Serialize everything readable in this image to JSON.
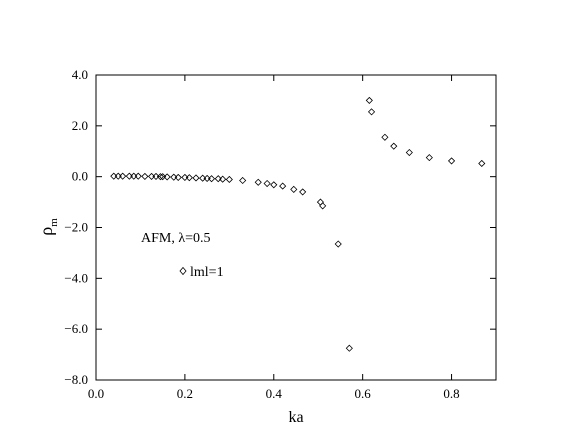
{
  "chart_data": {
    "type": "scatter",
    "xlabel": "ka",
    "ylabel_main": "ρ",
    "ylabel_sub": "m",
    "xlim": [
      0.0,
      0.9
    ],
    "ylim": [
      -8.0,
      4.0
    ],
    "x_ticks": [
      "0.0",
      "0.2",
      "0.4",
      "0.6",
      "0.8"
    ],
    "x_tick_values": [
      0.0,
      0.2,
      0.4,
      0.6,
      0.8
    ],
    "y_ticks": [
      "4.0",
      "2.0",
      "0.0",
      "−2.0",
      "−4.0",
      "−6.0",
      "−8.0"
    ],
    "y_tick_values": [
      4.0,
      2.0,
      0.0,
      -2.0,
      -4.0,
      -6.0,
      -8.0
    ],
    "grid": false,
    "marker": "diamond",
    "annotations": {
      "model_text": "AFM, λ=0.5",
      "legend_text": "lml=1"
    },
    "series": [
      {
        "name": "lml=1",
        "points": [
          [
            0.04,
            0.02
          ],
          [
            0.05,
            0.02
          ],
          [
            0.06,
            0.02
          ],
          [
            0.075,
            0.02
          ],
          [
            0.085,
            0.02
          ],
          [
            0.095,
            0.02
          ],
          [
            0.11,
            0.01
          ],
          [
            0.125,
            0.01
          ],
          [
            0.135,
            0.01
          ],
          [
            0.145,
            0.0
          ],
          [
            0.15,
            0.0
          ],
          [
            0.16,
            -0.01
          ],
          [
            0.175,
            -0.02
          ],
          [
            0.185,
            -0.03
          ],
          [
            0.2,
            -0.03
          ],
          [
            0.21,
            -0.04
          ],
          [
            0.225,
            -0.05
          ],
          [
            0.24,
            -0.06
          ],
          [
            0.25,
            -0.07
          ],
          [
            0.26,
            -0.08
          ],
          [
            0.275,
            -0.08
          ],
          [
            0.285,
            -0.1
          ],
          [
            0.3,
            -0.11
          ],
          [
            0.33,
            -0.15
          ],
          [
            0.365,
            -0.22
          ],
          [
            0.385,
            -0.27
          ],
          [
            0.4,
            -0.32
          ],
          [
            0.42,
            -0.37
          ],
          [
            0.445,
            -0.5
          ],
          [
            0.465,
            -0.6
          ],
          [
            0.505,
            -1.0
          ],
          [
            0.51,
            -1.15
          ],
          [
            0.545,
            -2.65
          ],
          [
            0.57,
            -6.75
          ],
          [
            0.615,
            3.0
          ],
          [
            0.62,
            2.55
          ],
          [
            0.65,
            1.55
          ],
          [
            0.67,
            1.2
          ],
          [
            0.705,
            0.95
          ],
          [
            0.75,
            0.75
          ],
          [
            0.8,
            0.62
          ],
          [
            0.868,
            0.52
          ]
        ]
      }
    ]
  }
}
